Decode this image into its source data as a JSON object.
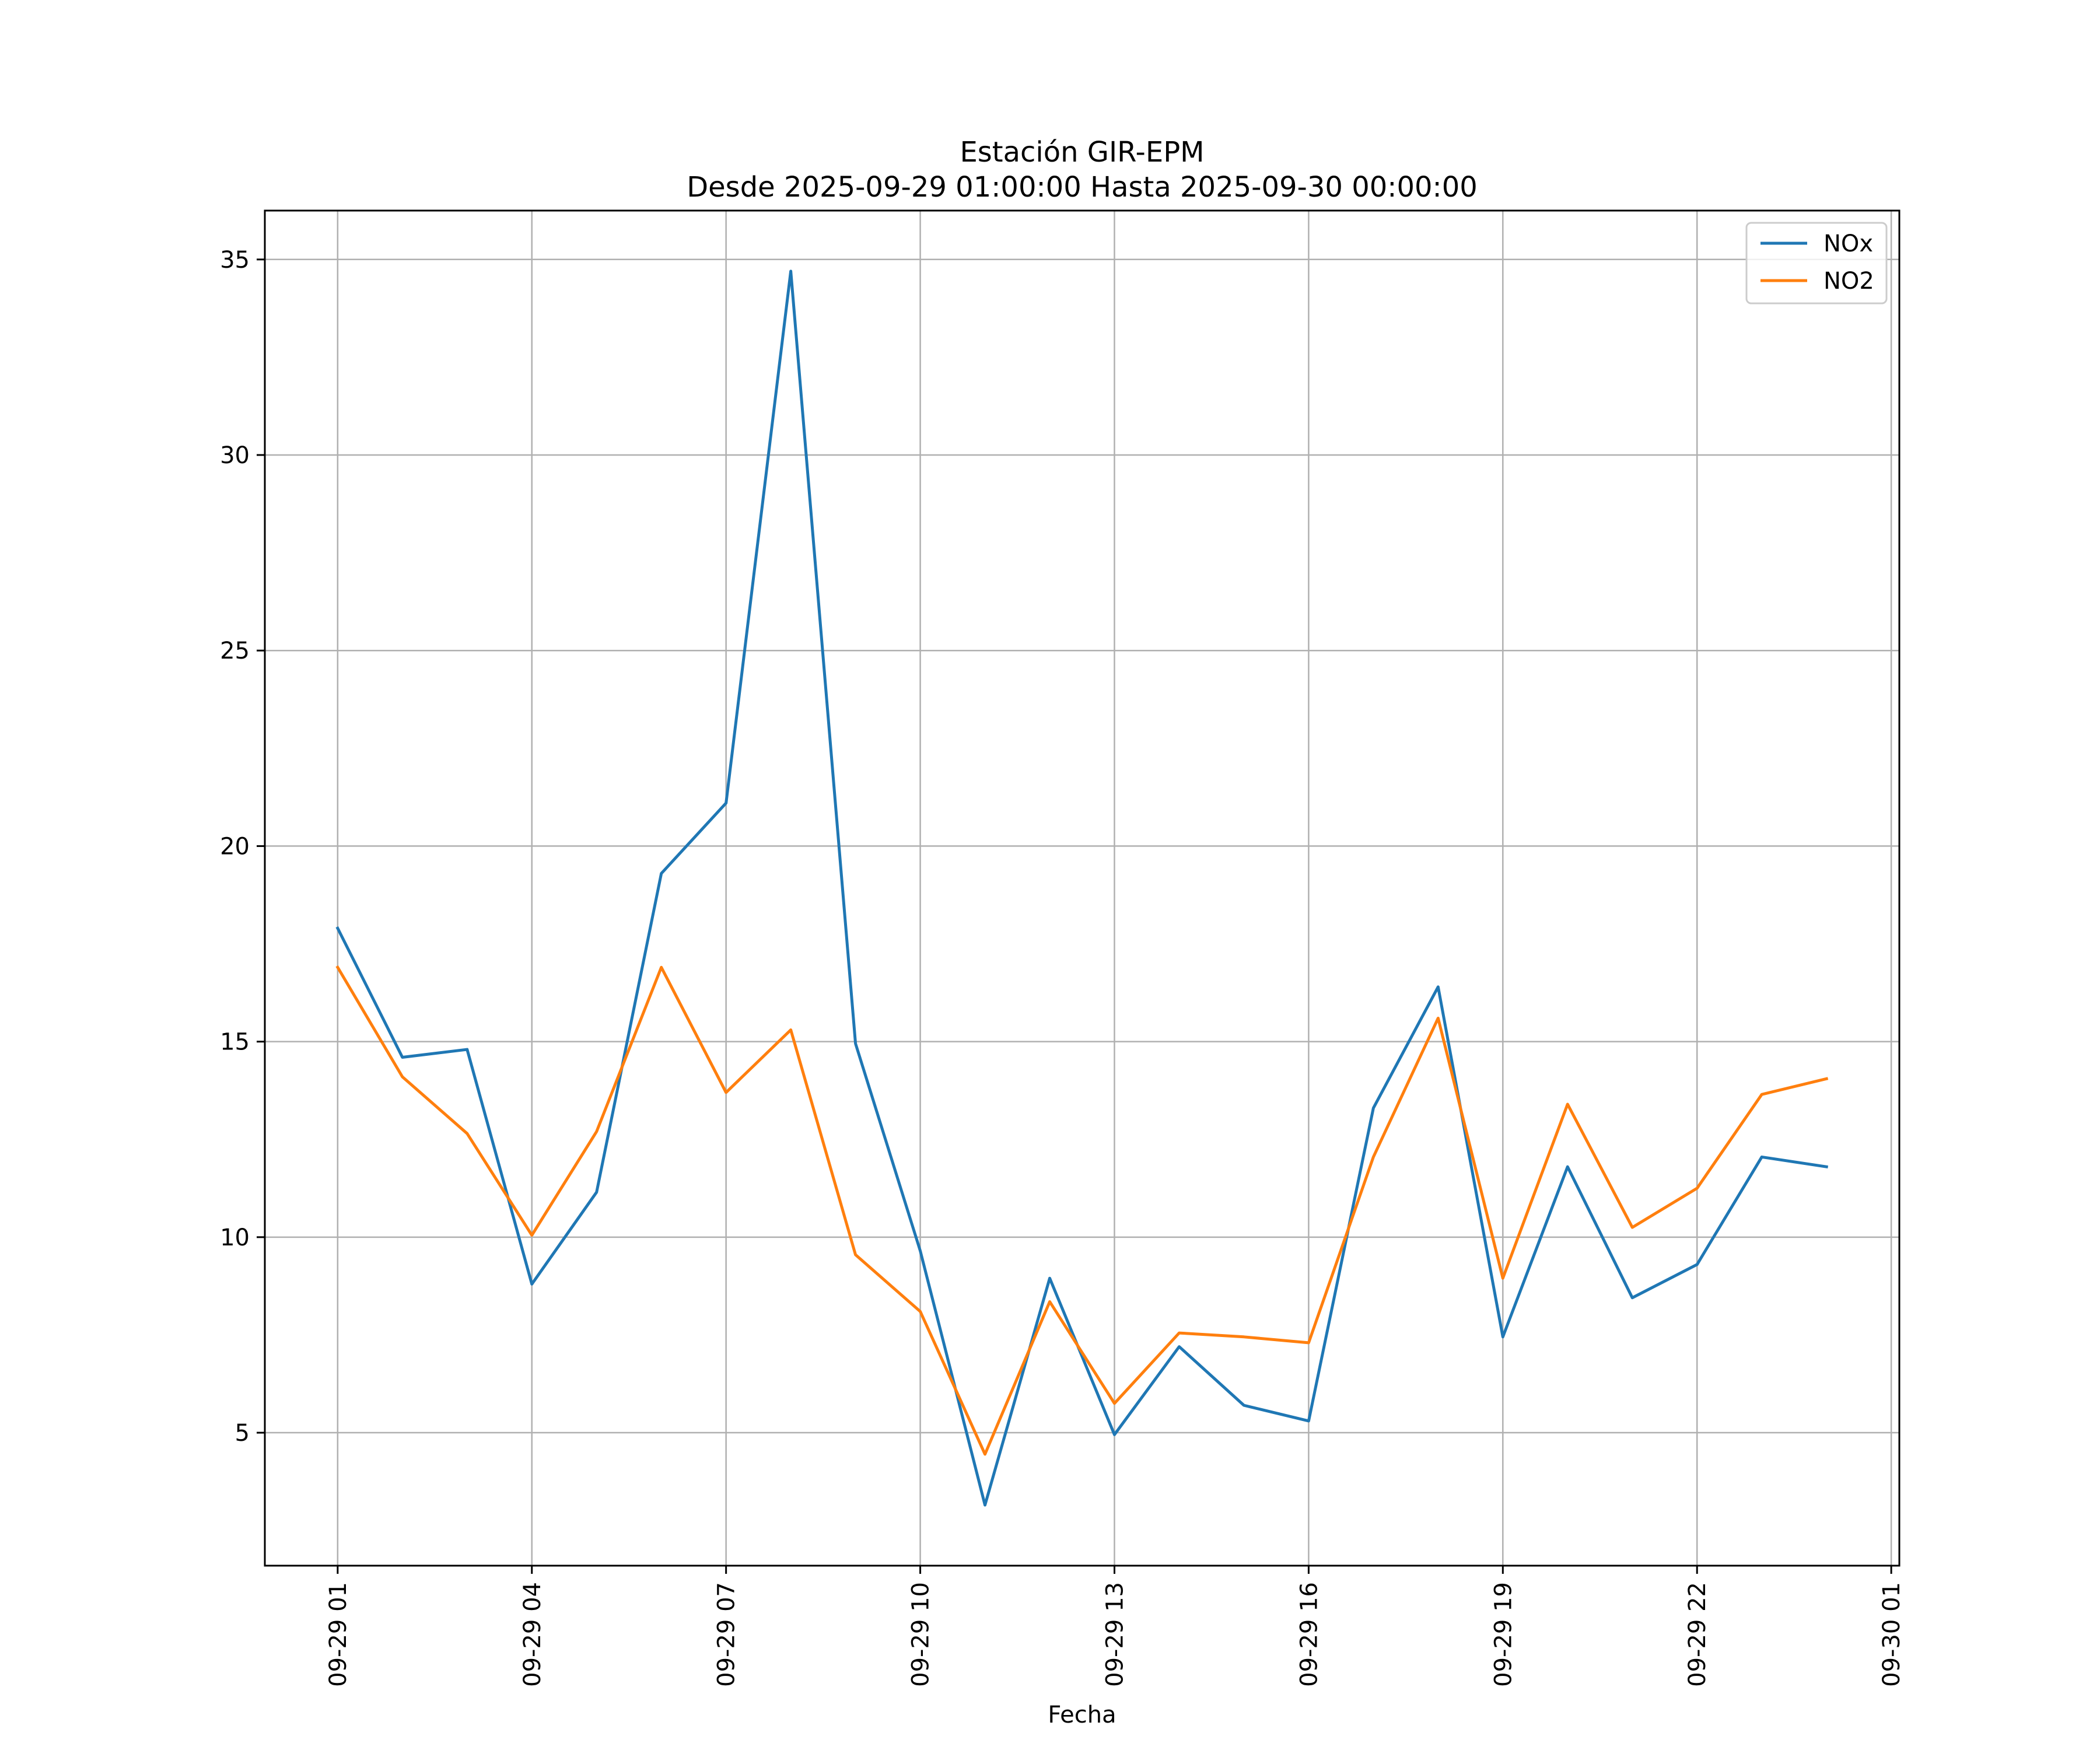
{
  "chart_data": {
    "type": "line",
    "title_line1": "Estación GIR-EPM",
    "title_line2": "Desde 2025-09-29 01:00:00 Hasta 2025-09-30 00:00:00",
    "xlabel": "Fecha",
    "ylabel": "",
    "x_hours": [
      0,
      1,
      2,
      3,
      4,
      5,
      6,
      7,
      8,
      9,
      10,
      11,
      12,
      13,
      14,
      15,
      16,
      17,
      18,
      19,
      20,
      21,
      22,
      23
    ],
    "x_timestamps": [
      "2025-09-29 01:00",
      "2025-09-29 02:00",
      "2025-09-29 03:00",
      "2025-09-29 04:00",
      "2025-09-29 05:00",
      "2025-09-29 06:00",
      "2025-09-29 07:00",
      "2025-09-29 08:00",
      "2025-09-29 09:00",
      "2025-09-29 10:00",
      "2025-09-29 11:00",
      "2025-09-29 12:00",
      "2025-09-29 13:00",
      "2025-09-29 14:00",
      "2025-09-29 15:00",
      "2025-09-29 16:00",
      "2025-09-29 17:00",
      "2025-09-29 18:00",
      "2025-09-29 19:00",
      "2025-09-29 20:00",
      "2025-09-29 21:00",
      "2025-09-29 22:00",
      "2025-09-29 23:00",
      "2025-09-30 00:00"
    ],
    "series": [
      {
        "name": "NOx",
        "color": "#1f77b4",
        "values": [
          17.9,
          14.6,
          14.8,
          8.8,
          11.15,
          19.3,
          21.1,
          34.7,
          14.95,
          9.65,
          3.15,
          8.95,
          4.95,
          7.2,
          5.7,
          5.3,
          13.3,
          16.4,
          7.45,
          11.8,
          8.45,
          9.3,
          12.05,
          11.8
        ]
      },
      {
        "name": "NO2",
        "color": "#ff7f0e",
        "values": [
          16.9,
          14.1,
          12.65,
          10.05,
          12.7,
          16.9,
          13.7,
          15.3,
          9.55,
          8.1,
          4.45,
          8.35,
          5.75,
          7.55,
          7.45,
          7.3,
          12.05,
          15.6,
          8.95,
          13.4,
          10.25,
          11.25,
          13.65,
          14.05
        ]
      }
    ],
    "x_range_hours": [
      -1.125,
      24.125
    ],
    "ylim": [
      1.6,
      36.25
    ],
    "x_ticks": [
      {
        "hour": 0,
        "label": "09-29 01"
      },
      {
        "hour": 3,
        "label": "09-29 04"
      },
      {
        "hour": 6,
        "label": "09-29 07"
      },
      {
        "hour": 9,
        "label": "09-29 10"
      },
      {
        "hour": 12,
        "label": "09-29 13"
      },
      {
        "hour": 15,
        "label": "09-29 16"
      },
      {
        "hour": 18,
        "label": "09-29 19"
      },
      {
        "hour": 21,
        "label": "09-29 22"
      },
      {
        "hour": 24,
        "label": "09-30 01"
      }
    ],
    "y_ticks": [
      {
        "value": 5,
        "label": "5"
      },
      {
        "value": 10,
        "label": "10"
      },
      {
        "value": 15,
        "label": "15"
      },
      {
        "value": 20,
        "label": "20"
      },
      {
        "value": 25,
        "label": "25"
      },
      {
        "value": 30,
        "label": "30"
      },
      {
        "value": 35,
        "label": "35"
      }
    ],
    "grid": true,
    "legend_position": "top-right"
  }
}
